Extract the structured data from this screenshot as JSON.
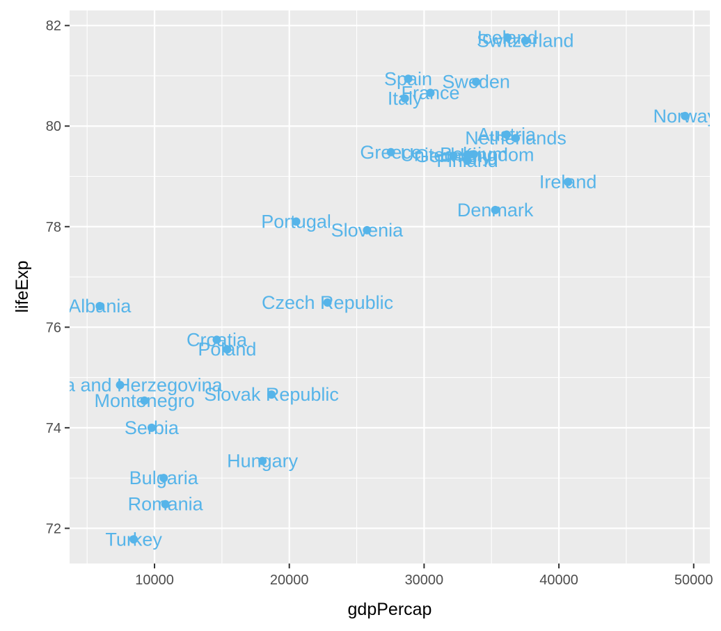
{
  "chart_data": {
    "type": "scatter",
    "xlabel": "gdpPercap",
    "ylabel": "lifeExp",
    "xlim": [
      3700,
      51200
    ],
    "ylim": [
      71.3,
      82.3
    ],
    "x_ticks": [
      10000,
      20000,
      30000,
      40000,
      50000
    ],
    "x_tick_labels": [
      "10000",
      "20000",
      "30000",
      "40000",
      "50000"
    ],
    "y_ticks": [
      72,
      74,
      76,
      78,
      80,
      82
    ],
    "y_tick_labels": [
      "72",
      "74",
      "76",
      "78",
      "80",
      "82"
    ],
    "grid": true,
    "colors": {
      "panel_background": "#ebebeb",
      "grid": "#ffffff",
      "point": "#56b4e9",
      "label": "#56b4e9"
    },
    "points": [
      {
        "label": "Albania",
        "x": 5937,
        "y": 76.42
      },
      {
        "label": "Austria",
        "x": 36126,
        "y": 79.83
      },
      {
        "label": "Belgium",
        "x": 33693,
        "y": 79.44
      },
      {
        "label": "Bosnia and Herzegovina",
        "x": 7446,
        "y": 74.85
      },
      {
        "label": "Bulgaria",
        "x": 10681,
        "y": 73.0
      },
      {
        "label": "Croatia",
        "x": 14619,
        "y": 75.75
      },
      {
        "label": "Czech Republic",
        "x": 22833,
        "y": 76.49
      },
      {
        "label": "Denmark",
        "x": 35278,
        "y": 78.33
      },
      {
        "label": "Finland",
        "x": 33207,
        "y": 79.31
      },
      {
        "label": "France",
        "x": 30470,
        "y": 80.66
      },
      {
        "label": "Germany",
        "x": 32170,
        "y": 79.41
      },
      {
        "label": "Greece",
        "x": 27538,
        "y": 79.48
      },
      {
        "label": "Hungary",
        "x": 18009,
        "y": 73.34
      },
      {
        "label": "Iceland",
        "x": 36181,
        "y": 81.76
      },
      {
        "label": "Ireland",
        "x": 40676,
        "y": 78.89
      },
      {
        "label": "Italy",
        "x": 28570,
        "y": 80.55
      },
      {
        "label": "Montenegro",
        "x": 9254,
        "y": 74.54
      },
      {
        "label": "Netherlands",
        "x": 36798,
        "y": 79.76
      },
      {
        "label": "Norway",
        "x": 49357,
        "y": 80.2
      },
      {
        "label": "Poland",
        "x": 15390,
        "y": 75.56
      },
      {
        "label": "Portugal",
        "x": 20510,
        "y": 78.1
      },
      {
        "label": "Romania",
        "x": 10808,
        "y": 72.48
      },
      {
        "label": "Serbia",
        "x": 9787,
        "y": 74.0
      },
      {
        "label": "Slovak Republic",
        "x": 18678,
        "y": 74.66
      },
      {
        "label": "Slovenia",
        "x": 25768,
        "y": 77.93
      },
      {
        "label": "Spain",
        "x": 28821,
        "y": 80.94
      },
      {
        "label": "Sweden",
        "x": 33860,
        "y": 80.88
      },
      {
        "label": "Switzerland",
        "x": 37506,
        "y": 81.7
      },
      {
        "label": "Turkey",
        "x": 8458,
        "y": 71.78
      },
      {
        "label": "United Kingdom",
        "x": 33203,
        "y": 79.43
      }
    ]
  }
}
